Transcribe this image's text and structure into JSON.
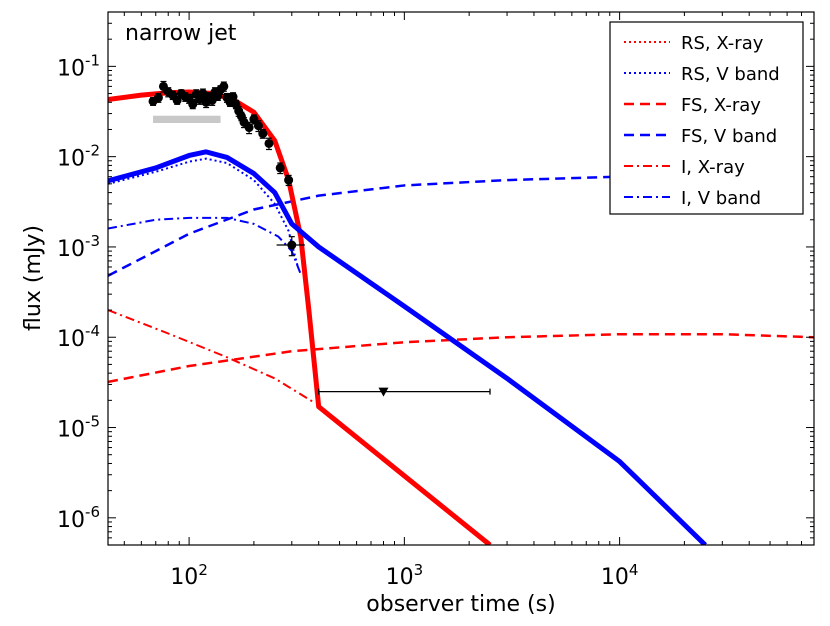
{
  "chart_data": {
    "type": "line",
    "title": "",
    "annotation": "narrow jet",
    "xlabel": "observer time (s)",
    "ylabel": "flux (mJy)",
    "xscale": "log",
    "yscale": "log",
    "xlim": [
      42,
      80000
    ],
    "ylim": [
      5e-07,
      0.4
    ],
    "x_ticks": [
      {
        "value": 100,
        "base": "10",
        "exp": "2"
      },
      {
        "value": 1000,
        "base": "10",
        "exp": "3"
      },
      {
        "value": 10000,
        "base": "10",
        "exp": "4"
      }
    ],
    "y_ticks": [
      {
        "value": 1e-06,
        "base": "10",
        "exp": "-6"
      },
      {
        "value": 1e-05,
        "base": "10",
        "exp": "-5"
      },
      {
        "value": 0.0001,
        "base": "10",
        "exp": "-4"
      },
      {
        "value": 0.001,
        "base": "10",
        "exp": "-3"
      },
      {
        "value": 0.01,
        "base": "10",
        "exp": "-2"
      },
      {
        "value": 0.1,
        "base": "10",
        "exp": "-1"
      }
    ],
    "legend_position": "top-right",
    "colors": {
      "red": "#ff0000",
      "blue": "#0000ff",
      "band": "#c8c8c8",
      "points": "#000000"
    },
    "series": [
      {
        "name": "RS, X-ray",
        "color": "#ff0000",
        "style": "dotted",
        "in_legend": true,
        "points": [
          [
            42,
            0.043
          ],
          [
            60,
            0.048
          ],
          [
            80,
            0.051
          ],
          [
            100,
            0.052
          ],
          [
            130,
            0.05
          ],
          [
            160,
            0.043
          ],
          [
            200,
            0.031
          ],
          [
            250,
            0.015
          ],
          [
            290,
            0.0055
          ],
          [
            330,
            0.0012
          ]
        ]
      },
      {
        "name": "RS, V band",
        "color": "#0000ff",
        "style": "dotted",
        "in_legend": true,
        "points": [
          [
            42,
            0.005
          ],
          [
            70,
            0.0068
          ],
          [
            100,
            0.0088
          ],
          [
            120,
            0.0095
          ],
          [
            150,
            0.0085
          ],
          [
            200,
            0.0055
          ],
          [
            250,
            0.003
          ],
          [
            290,
            0.0015
          ],
          [
            320,
            0.0006
          ]
        ]
      },
      {
        "name": "FS, X-ray",
        "color": "#ff0000",
        "style": "dashed",
        "in_legend": true,
        "points": [
          [
            42,
            3.2e-05
          ],
          [
            100,
            4.8e-05
          ],
          [
            300,
            7e-05
          ],
          [
            1000,
            8.8e-05
          ],
          [
            3000,
            0.0001
          ],
          [
            10000,
            0.000108
          ],
          [
            30000,
            0.000108
          ],
          [
            80000,
            0.0001
          ]
        ]
      },
      {
        "name": "FS, V band",
        "color": "#0000ff",
        "style": "dashed",
        "in_legend": true,
        "points": [
          [
            42,
            0.00048
          ],
          [
            70,
            0.0009
          ],
          [
            100,
            0.0014
          ],
          [
            200,
            0.0026
          ],
          [
            400,
            0.0037
          ],
          [
            1000,
            0.0048
          ],
          [
            3000,
            0.0055
          ],
          [
            10000,
            0.006
          ],
          [
            30000,
            0.0062
          ],
          [
            45000,
            0.0062
          ]
        ]
      },
      {
        "name": "I, X-ray",
        "color": "#ff0000",
        "style": "dashdot",
        "in_legend": true,
        "points": [
          [
            42,
            0.0002
          ],
          [
            80,
            0.00011
          ],
          [
            150,
            6e-05
          ],
          [
            250,
            3.5e-05
          ],
          [
            380,
            1.9e-05
          ]
        ]
      },
      {
        "name": "I, V band",
        "color": "#0000ff",
        "style": "dashdot",
        "in_legend": true,
        "points": [
          [
            42,
            0.0016
          ],
          [
            70,
            0.002
          ],
          [
            100,
            0.0021
          ],
          [
            150,
            0.0021
          ],
          [
            200,
            0.0018
          ],
          [
            260,
            0.0013
          ],
          [
            300,
            0.0009
          ],
          [
            330,
            0.0005
          ]
        ]
      },
      {
        "name": "",
        "color": "#ff0000",
        "style": "solid-thick",
        "in_legend": false,
        "points": [
          [
            42,
            0.043
          ],
          [
            60,
            0.048
          ],
          [
            80,
            0.051
          ],
          [
            100,
            0.052
          ],
          [
            130,
            0.05
          ],
          [
            160,
            0.043
          ],
          [
            200,
            0.031
          ],
          [
            250,
            0.015
          ],
          [
            290,
            0.0055
          ],
          [
            330,
            0.0013
          ],
          [
            360,
            0.0002
          ],
          [
            400,
            1.7e-05
          ],
          [
            2500,
            5e-07
          ]
        ]
      },
      {
        "name": "",
        "color": "#0000ff",
        "style": "solid-thick",
        "in_legend": false,
        "points": [
          [
            42,
            0.0054
          ],
          [
            70,
            0.0075
          ],
          [
            100,
            0.0103
          ],
          [
            120,
            0.0113
          ],
          [
            150,
            0.0098
          ],
          [
            200,
            0.0065
          ],
          [
            250,
            0.004
          ],
          [
            300,
            0.0018
          ],
          [
            400,
            0.001
          ],
          [
            1000,
            0.00022
          ],
          [
            3000,
            3.5e-05
          ],
          [
            10000,
            4.2e-06
          ],
          [
            25000,
            5e-07
          ]
        ]
      }
    ],
    "data_points": [
      {
        "x": 68,
        "y": 0.041,
        "err": 0.004
      },
      {
        "x": 72,
        "y": 0.045,
        "err": 0.005
      },
      {
        "x": 76,
        "y": 0.06,
        "err": 0.008
      },
      {
        "x": 80,
        "y": 0.052,
        "err": 0.006
      },
      {
        "x": 84,
        "y": 0.048,
        "err": 0.005
      },
      {
        "x": 88,
        "y": 0.042,
        "err": 0.004
      },
      {
        "x": 92,
        "y": 0.05,
        "err": 0.005
      },
      {
        "x": 96,
        "y": 0.046,
        "err": 0.005
      },
      {
        "x": 100,
        "y": 0.044,
        "err": 0.005
      },
      {
        "x": 104,
        "y": 0.038,
        "err": 0.004
      },
      {
        "x": 108,
        "y": 0.049,
        "err": 0.006
      },
      {
        "x": 112,
        "y": 0.043,
        "err": 0.005
      },
      {
        "x": 116,
        "y": 0.05,
        "err": 0.006
      },
      {
        "x": 120,
        "y": 0.04,
        "err": 0.005
      },
      {
        "x": 124,
        "y": 0.046,
        "err": 0.005
      },
      {
        "x": 128,
        "y": 0.042,
        "err": 0.005
      },
      {
        "x": 132,
        "y": 0.052,
        "err": 0.006
      },
      {
        "x": 136,
        "y": 0.047,
        "err": 0.005
      },
      {
        "x": 140,
        "y": 0.055,
        "err": 0.006
      },
      {
        "x": 145,
        "y": 0.06,
        "err": 0.007
      },
      {
        "x": 150,
        "y": 0.045,
        "err": 0.005
      },
      {
        "x": 155,
        "y": 0.04,
        "err": 0.004
      },
      {
        "x": 160,
        "y": 0.046,
        "err": 0.005
      },
      {
        "x": 165,
        "y": 0.038,
        "err": 0.004
      },
      {
        "x": 170,
        "y": 0.032,
        "err": 0.004
      },
      {
        "x": 175,
        "y": 0.028,
        "err": 0.003
      },
      {
        "x": 180,
        "y": 0.024,
        "err": 0.003
      },
      {
        "x": 190,
        "y": 0.021,
        "err": 0.003
      },
      {
        "x": 200,
        "y": 0.026,
        "err": 0.003
      },
      {
        "x": 210,
        "y": 0.022,
        "err": 0.003
      },
      {
        "x": 220,
        "y": 0.018,
        "err": 0.002
      },
      {
        "x": 235,
        "y": 0.014,
        "err": 0.002
      },
      {
        "x": 265,
        "y": 0.0075,
        "err": 0.001
      },
      {
        "x": 290,
        "y": 0.0055,
        "err": 0.0007
      },
      {
        "x": 300,
        "y": 0.00105,
        "err": 0.00025,
        "xerr": [
          255,
          345
        ]
      }
    ],
    "upper_limit": {
      "x": 800,
      "xrange": [
        400,
        2500
      ],
      "y": 2.5e-05
    },
    "band": {
      "xrange": [
        68,
        140
      ],
      "yrange": [
        0.0236,
        0.0284
      ]
    }
  }
}
